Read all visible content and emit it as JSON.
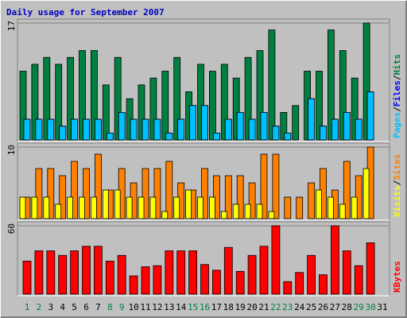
{
  "chart_data": {
    "type": "bar",
    "title": "Daily usage for September 2007",
    "categories": [
      "1",
      "2",
      "3",
      "4",
      "5",
      "6",
      "7",
      "8",
      "9",
      "10",
      "11",
      "12",
      "13",
      "14",
      "15",
      "16",
      "17",
      "18",
      "19",
      "20",
      "21",
      "22",
      "23",
      "24",
      "25",
      "26",
      "27",
      "28",
      "29",
      "30",
      "31"
    ],
    "highlight_categories": [
      0,
      1,
      7,
      8,
      14,
      15,
      21,
      22,
      28,
      29
    ],
    "highlight_color": "#008040",
    "legend_separator": "/",
    "panels": [
      {
        "ylim": [
          0,
          17
        ],
        "yticks": [
          17
        ],
        "series": [
          {
            "name": "Hits",
            "color": "#008040",
            "values": [
              10,
              11,
              12,
              11,
              12,
              13,
              13,
              8,
              12,
              6,
              8,
              9,
              10,
              12,
              7,
              11,
              10,
              11,
              9,
              12,
              13,
              16,
              4,
              5,
              10,
              10,
              16,
              13,
              9,
              17,
              null
            ]
          },
          {
            "name": "Files",
            "color": "#0000ff",
            "values": [
              3,
              3,
              3,
              2,
              3,
              3,
              3,
              1,
              4,
              3,
              3,
              3,
              1,
              3,
              5,
              5,
              1,
              3,
              4,
              3,
              4,
              2,
              1,
              0,
              6,
              2,
              3,
              4,
              3,
              7,
              null
            ]
          },
          {
            "name": "Pages",
            "color": "#00c0ff",
            "values": [
              3,
              3,
              3,
              2,
              3,
              3,
              3,
              1,
              4,
              3,
              3,
              3,
              1,
              3,
              5,
              5,
              1,
              3,
              4,
              3,
              4,
              2,
              1,
              0,
              6,
              2,
              3,
              4,
              3,
              7,
              null
            ]
          }
        ]
      },
      {
        "ylim": [
          0,
          10
        ],
        "yticks": [
          10
        ],
        "series": [
          {
            "name": "Sites",
            "color": "#ff8000",
            "values": [
              3,
              7,
              7,
              6,
              8,
              7,
              9,
              4,
              7,
              5,
              7,
              7,
              8,
              5,
              4,
              7,
              6,
              6,
              6,
              5,
              9,
              9,
              3,
              3,
              5,
              7,
              4,
              8,
              6,
              10,
              null
            ]
          },
          {
            "name": "Visits",
            "color": "#ffff00",
            "values": [
              3,
              3,
              3,
              2,
              3,
              3,
              3,
              4,
              4,
              3,
              3,
              3,
              1,
              3,
              4,
              3,
              3,
              1,
              2,
              2,
              2,
              1,
              0,
              0,
              0,
              4,
              3,
              2,
              3,
              7,
              null
            ]
          }
        ]
      },
      {
        "ylim": [
          0,
          60
        ],
        "yticks": [
          60
        ],
        "series": [
          {
            "name": "KBytes",
            "color": "#ff0000",
            "values": [
              29,
              38,
              38,
              34,
              38,
              42,
              42,
              29,
              34,
              16,
              24,
              25,
              38,
              38,
              38,
              26,
              21,
              41,
              20,
              34,
              42,
              60,
              11,
              19,
              34,
              17,
              60,
              38,
              25,
              45,
              null
            ]
          }
        ]
      }
    ]
  }
}
